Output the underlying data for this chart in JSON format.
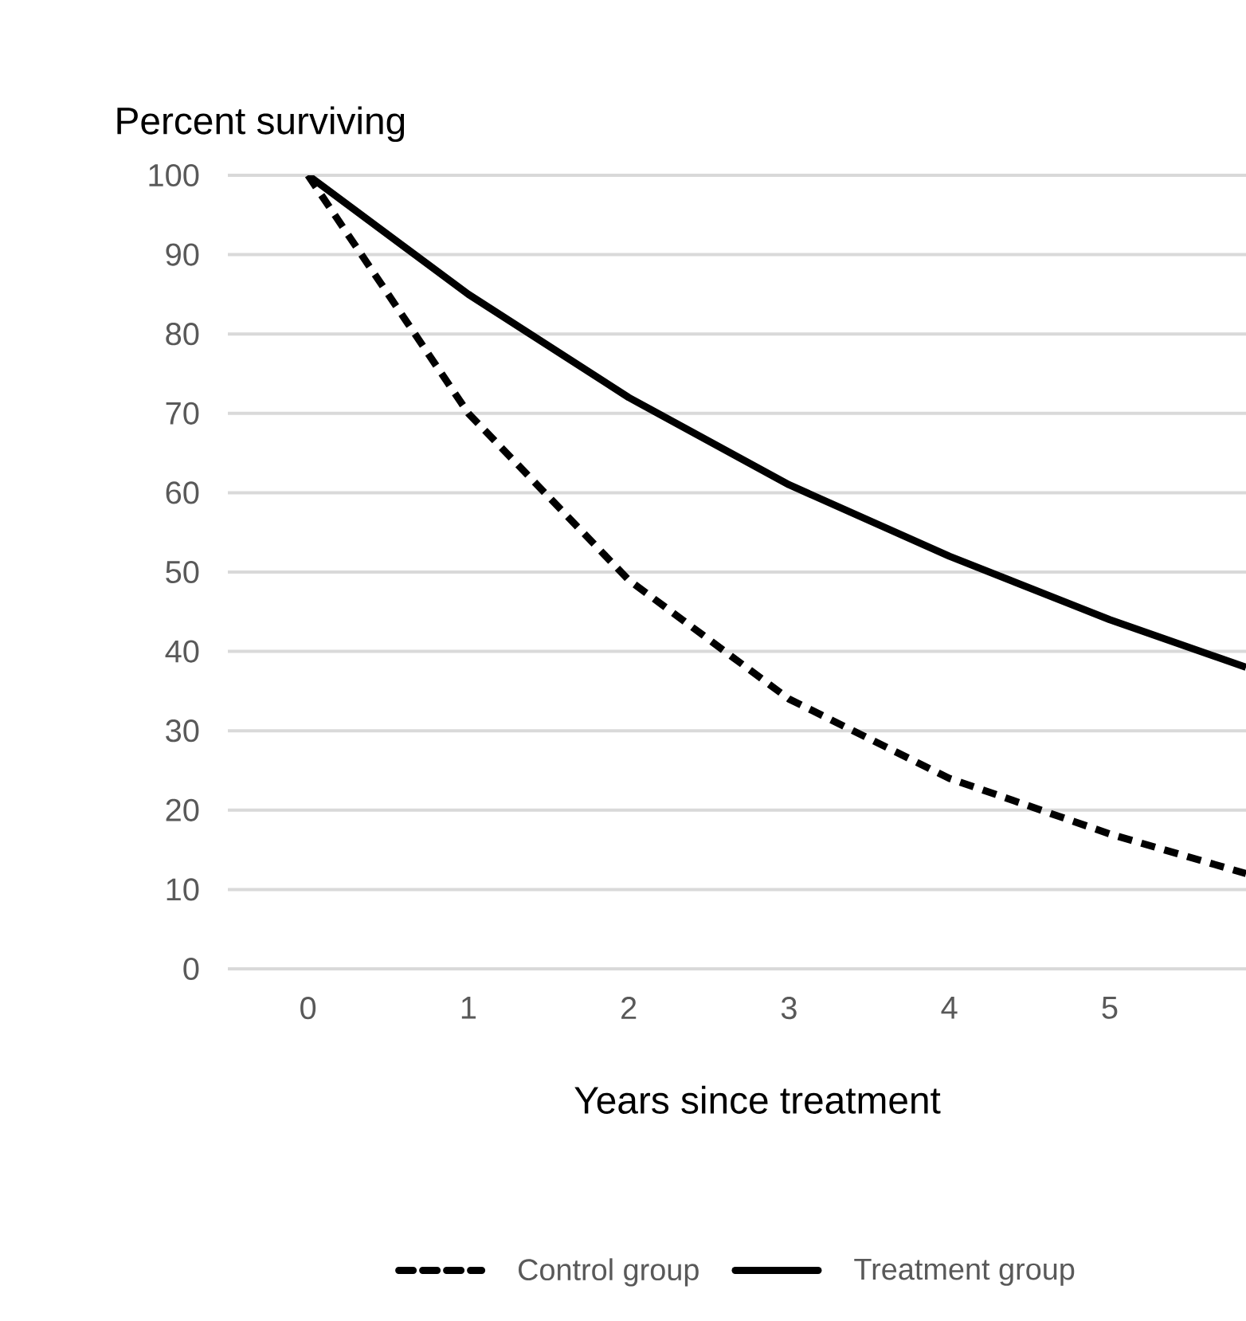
{
  "chart_data": {
    "type": "line",
    "ylabel": "Percent surviving",
    "xlabel": "Years since treatment",
    "x": [
      0,
      1,
      2,
      3,
      4,
      5,
      5.85
    ],
    "xlim": [
      -0.5,
      5.85
    ],
    "xticks": [
      0,
      1,
      2,
      3,
      4,
      5
    ],
    "ylim": [
      0,
      100
    ],
    "yticks": [
      0,
      10,
      20,
      30,
      40,
      50,
      60,
      70,
      80,
      90,
      100
    ],
    "grid": "y",
    "legend": "bottom",
    "marker": "none",
    "series": [
      {
        "name": "Control group",
        "color": "#000000",
        "line_style": "dashed",
        "values": [
          100,
          70,
          49,
          34,
          24,
          17,
          12
        ]
      },
      {
        "name": "Treatment group",
        "color": "#000000",
        "line_style": "solid",
        "values": [
          100,
          85,
          72,
          61,
          52,
          44,
          38
        ]
      }
    ]
  }
}
